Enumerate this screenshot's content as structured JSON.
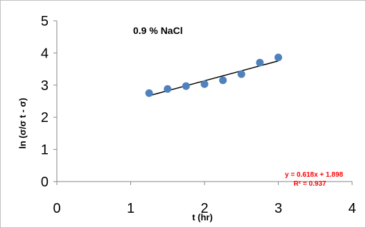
{
  "chart_data": {
    "type": "scatter",
    "title": "0.9 % NaCl",
    "xlabel": "t  (hr)",
    "ylabel": "ln (σ/σ t - σ)",
    "xlim": [
      0,
      4
    ],
    "ylim": [
      0,
      5
    ],
    "x_ticks": [
      "0",
      "1",
      "2",
      "3",
      "4"
    ],
    "y_ticks": [
      "0",
      "1",
      "2",
      "3",
      "4",
      "5"
    ],
    "grid": false,
    "x": [
      1.25,
      1.5,
      1.75,
      2.0,
      2.25,
      2.5,
      2.75,
      3.0
    ],
    "y": [
      2.75,
      2.88,
      2.97,
      3.03,
      3.15,
      3.34,
      3.7,
      3.86
    ],
    "marker_color": "#4f81bd",
    "trendline": {
      "slope": 0.618,
      "intercept": 1.898,
      "x_range": [
        1.25,
        3.0
      ],
      "color": "#000000",
      "equation": "y = 0.618x + 1.898",
      "r_squared": "R² = 0.937",
      "label_color": "#ff0000"
    }
  }
}
